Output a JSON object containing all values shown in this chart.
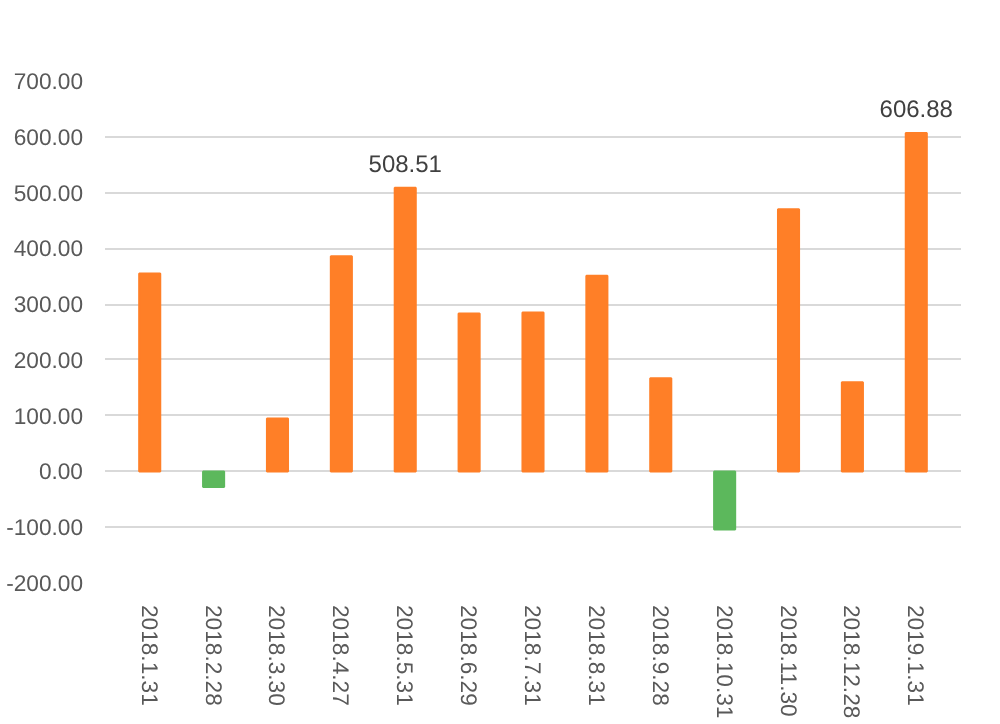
{
  "chart_data": {
    "type": "bar",
    "categories": [
      "2018.1.31",
      "2018.2.28",
      "2018.3.30",
      "2018.4.27",
      "2018.5.31",
      "2018.6.29",
      "2018.7.31",
      "2018.8.31",
      "2018.9.28",
      "2018.10.31",
      "2018.11.30",
      "2018.12.28",
      "2019.1.31"
    ],
    "values": [
      355,
      -28,
      95,
      386,
      508.51,
      283,
      285,
      351,
      167,
      -104,
      470,
      160,
      606.88
    ],
    "colors": [
      "#ff7f27",
      "#5cb85c",
      "#ff7f27",
      "#ff7f27",
      "#ff7f27",
      "#ff7f27",
      "#ff7f27",
      "#ff7f27",
      "#ff7f27",
      "#5cb85c",
      "#ff7f27",
      "#ff7f27",
      "#ff7f27"
    ],
    "value_labels": [
      null,
      null,
      null,
      null,
      "508.51",
      null,
      null,
      null,
      null,
      null,
      null,
      null,
      "606.88"
    ],
    "ylim": [
      -200,
      700
    ],
    "yticks": [
      {
        "value": -200,
        "label": "-200.00"
      },
      {
        "value": -100,
        "label": "-100.00"
      },
      {
        "value": 0,
        "label": "0.00"
      },
      {
        "value": 100,
        "label": "100.00"
      },
      {
        "value": 200,
        "label": "200.00"
      },
      {
        "value": 300,
        "label": "300.00"
      },
      {
        "value": 400,
        "label": "400.00"
      },
      {
        "value": 500,
        "label": "500.00"
      },
      {
        "value": 600,
        "label": "600.00"
      },
      {
        "value": 700,
        "label": "700.00"
      }
    ],
    "grid": "y"
  }
}
